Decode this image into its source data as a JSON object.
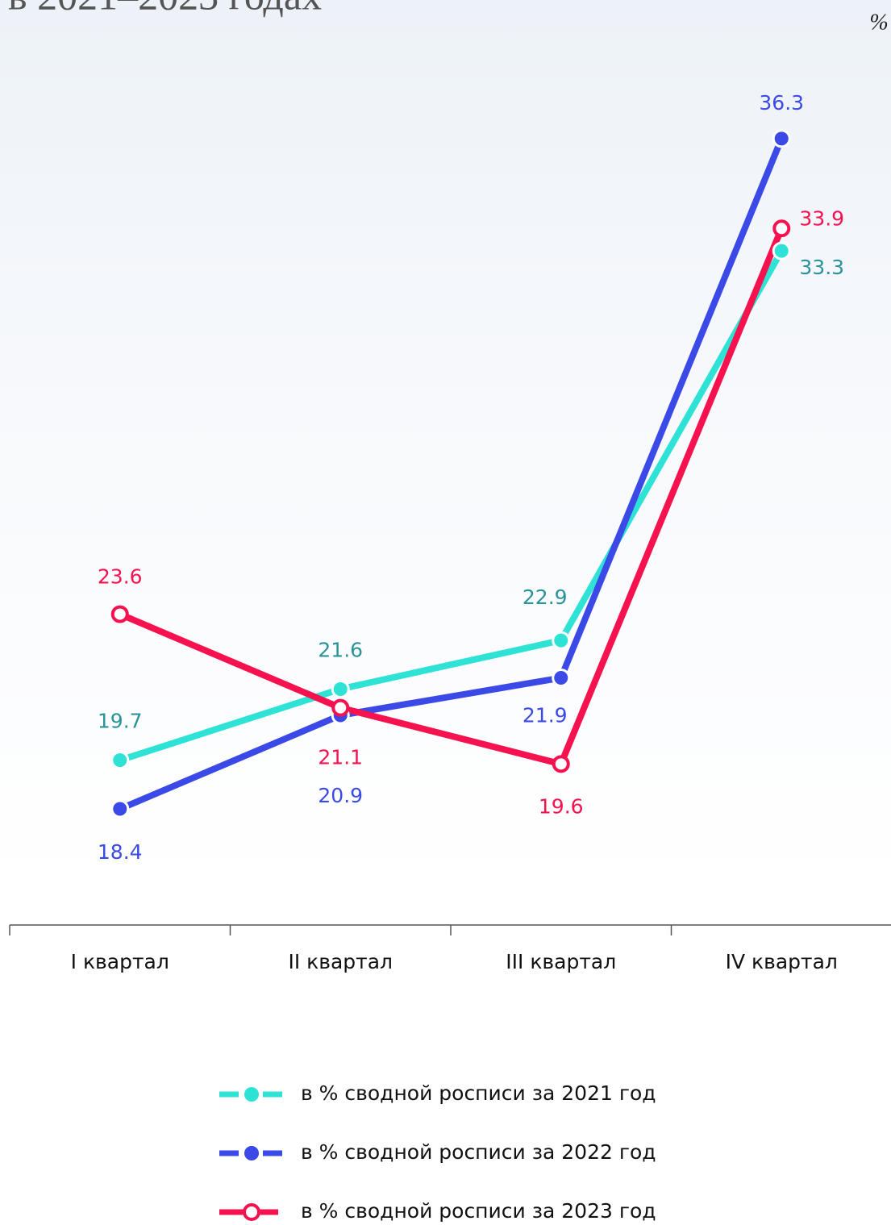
{
  "chart_data": {
    "type": "line",
    "title": "в 2021–2023 годах",
    "unit": "%",
    "categories": [
      "I квартал",
      "II квартал",
      "III квартал",
      "IV квартал"
    ],
    "ylim": [
      15.3,
      40
    ],
    "series": [
      {
        "name": "в % сводной росписи за 2021 год",
        "color": "#2ee3d6",
        "label_color": "#2a9399",
        "marker": "filled",
        "values": [
          19.7,
          21.6,
          22.9,
          33.3
        ]
      },
      {
        "name": "в % сводной росписи за 2022 год",
        "color": "#3b4ae6",
        "label_color": "#3b4ae6",
        "marker": "filled",
        "values": [
          18.4,
          20.9,
          21.9,
          36.3
        ]
      },
      {
        "name": "в % сводной росписи за 2023 год",
        "color": "#f5124f",
        "label_color": "#f5124f",
        "marker": "hollow",
        "values": [
          23.6,
          21.1,
          19.6,
          33.9
        ]
      }
    ]
  }
}
